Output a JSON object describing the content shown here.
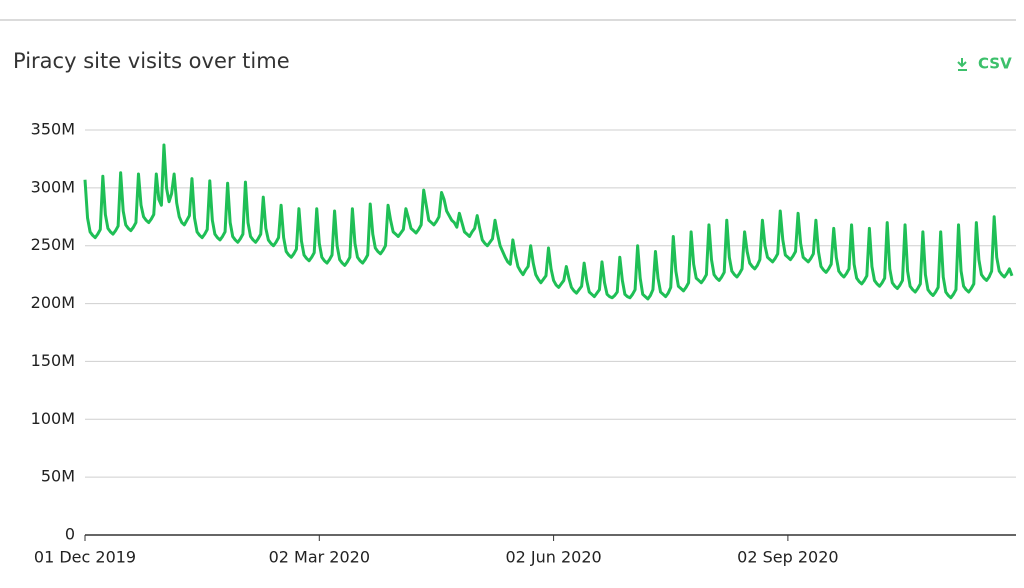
{
  "export_label": "CSV",
  "chart_data": {
    "type": "line",
    "title": "Piracy site visits over time",
    "color": "#1fbf56",
    "grid": true,
    "xlim": [
      "2019-12-01",
      "2020-11-29"
    ],
    "xticks": [
      {
        "value": "2019-12-01",
        "label": "01 Dec 2019"
      },
      {
        "value": "2020-03-02",
        "label": "02 Mar 2020"
      },
      {
        "value": "2020-06-02",
        "label": "02 Jun 2020"
      },
      {
        "value": "2020-09-02",
        "label": "02 Sep 2020"
      }
    ],
    "ylim": [
      0,
      350
    ],
    "yticks": [
      0,
      {
        "value": 50,
        "label": "50M"
      },
      {
        "value": 100,
        "label": "100M"
      },
      {
        "value": 150,
        "label": "150M"
      },
      {
        "value": 200,
        "label": "200M"
      },
      {
        "value": 250,
        "label": "250M"
      },
      {
        "value": 300,
        "label": "300M"
      },
      {
        "value": 350,
        "label": "350M"
      }
    ],
    "x": [
      "2019-12-01",
      "2019-12-02",
      "2019-12-03",
      "2019-12-04",
      "2019-12-05",
      "2019-12-06",
      "2019-12-07",
      "2019-12-08",
      "2019-12-09",
      "2019-12-10",
      "2019-12-11",
      "2019-12-12",
      "2019-12-13",
      "2019-12-14",
      "2019-12-15",
      "2019-12-16",
      "2019-12-17",
      "2019-12-18",
      "2019-12-19",
      "2019-12-20",
      "2019-12-21",
      "2019-12-22",
      "2019-12-23",
      "2019-12-24",
      "2019-12-25",
      "2019-12-26",
      "2019-12-27",
      "2019-12-28",
      "2019-12-29",
      "2019-12-30",
      "2019-12-31",
      "2020-01-01",
      "2020-01-02",
      "2020-01-03",
      "2020-01-04",
      "2020-01-05",
      "2020-01-06",
      "2020-01-07",
      "2020-01-08",
      "2020-01-09",
      "2020-01-10",
      "2020-01-11",
      "2020-01-12",
      "2020-01-13",
      "2020-01-14",
      "2020-01-15",
      "2020-01-16",
      "2020-01-17",
      "2020-01-18",
      "2020-01-19",
      "2020-01-20",
      "2020-01-21",
      "2020-01-22",
      "2020-01-23",
      "2020-01-24",
      "2020-01-25",
      "2020-01-26",
      "2020-01-27",
      "2020-01-28",
      "2020-01-29",
      "2020-01-30",
      "2020-01-31",
      "2020-02-01",
      "2020-02-02",
      "2020-02-03",
      "2020-02-04",
      "2020-02-05",
      "2020-02-06",
      "2020-02-07",
      "2020-02-08",
      "2020-02-09",
      "2020-02-10",
      "2020-02-11",
      "2020-02-12",
      "2020-02-13",
      "2020-02-14",
      "2020-02-15",
      "2020-02-16",
      "2020-02-17",
      "2020-02-18",
      "2020-02-19",
      "2020-02-20",
      "2020-02-21",
      "2020-02-22",
      "2020-02-23",
      "2020-02-24",
      "2020-02-25",
      "2020-02-26",
      "2020-02-27",
      "2020-02-28",
      "2020-02-29",
      "2020-03-01",
      "2020-03-02",
      "2020-03-03",
      "2020-03-04",
      "2020-03-05",
      "2020-03-06",
      "2020-03-07",
      "2020-03-08",
      "2020-03-09",
      "2020-03-10",
      "2020-03-11",
      "2020-03-12",
      "2020-03-13",
      "2020-03-14",
      "2020-03-15",
      "2020-03-16",
      "2020-03-17",
      "2020-03-18",
      "2020-03-19",
      "2020-03-20",
      "2020-03-21",
      "2020-03-22",
      "2020-03-23",
      "2020-03-24",
      "2020-03-25",
      "2020-03-26",
      "2020-03-27",
      "2020-03-28",
      "2020-03-29",
      "2020-03-30",
      "2020-03-31",
      "2020-04-01",
      "2020-04-02",
      "2020-04-03",
      "2020-04-04",
      "2020-04-05",
      "2020-04-06",
      "2020-04-07",
      "2020-04-08",
      "2020-04-09",
      "2020-04-10",
      "2020-04-11",
      "2020-04-12",
      "2020-04-13",
      "2020-04-14",
      "2020-04-15",
      "2020-04-16",
      "2020-04-17",
      "2020-04-18",
      "2020-04-19",
      "2020-04-20",
      "2020-04-21",
      "2020-04-22",
      "2020-04-23",
      "2020-04-24",
      "2020-04-25",
      "2020-04-26",
      "2020-04-27",
      "2020-04-28",
      "2020-04-29",
      "2020-04-30",
      "2020-05-01",
      "2020-05-02",
      "2020-05-03",
      "2020-05-04",
      "2020-05-05",
      "2020-05-06",
      "2020-05-07",
      "2020-05-08",
      "2020-05-09",
      "2020-05-10",
      "2020-05-11",
      "2020-05-12",
      "2020-05-13",
      "2020-05-14",
      "2020-05-15",
      "2020-05-16",
      "2020-05-17",
      "2020-05-18",
      "2020-05-19",
      "2020-05-20",
      "2020-05-21",
      "2020-05-22",
      "2020-05-23",
      "2020-05-24",
      "2020-05-25",
      "2020-05-26",
      "2020-05-27",
      "2020-05-28",
      "2020-05-29",
      "2020-05-30",
      "2020-05-31",
      "2020-06-01",
      "2020-06-02",
      "2020-06-03",
      "2020-06-04",
      "2020-06-05",
      "2020-06-06",
      "2020-06-07",
      "2020-06-08",
      "2020-06-09",
      "2020-06-10",
      "2020-06-11",
      "2020-06-12",
      "2020-06-13",
      "2020-06-14",
      "2020-06-15",
      "2020-06-16",
      "2020-06-17",
      "2020-06-18",
      "2020-06-19",
      "2020-06-20",
      "2020-06-21",
      "2020-06-22",
      "2020-06-23",
      "2020-06-24",
      "2020-06-25",
      "2020-06-26",
      "2020-06-27",
      "2020-06-28",
      "2020-06-29",
      "2020-06-30",
      "2020-07-01",
      "2020-07-02",
      "2020-07-03",
      "2020-07-04",
      "2020-07-05",
      "2020-07-06",
      "2020-07-07",
      "2020-07-08",
      "2020-07-09",
      "2020-07-10",
      "2020-07-11",
      "2020-07-12",
      "2020-07-13",
      "2020-07-14",
      "2020-07-15",
      "2020-07-16",
      "2020-07-17",
      "2020-07-18",
      "2020-07-19",
      "2020-07-20",
      "2020-07-21",
      "2020-07-22",
      "2020-07-23",
      "2020-07-24",
      "2020-07-25",
      "2020-07-26",
      "2020-07-27",
      "2020-07-28",
      "2020-07-29",
      "2020-07-30",
      "2020-07-31",
      "2020-08-01",
      "2020-08-02",
      "2020-08-03",
      "2020-08-04",
      "2020-08-05",
      "2020-08-06",
      "2020-08-07",
      "2020-08-08",
      "2020-08-09",
      "2020-08-10",
      "2020-08-11",
      "2020-08-12",
      "2020-08-13",
      "2020-08-14",
      "2020-08-15",
      "2020-08-16",
      "2020-08-17",
      "2020-08-18",
      "2020-08-19",
      "2020-08-20",
      "2020-08-21",
      "2020-08-22",
      "2020-08-23",
      "2020-08-24",
      "2020-08-25",
      "2020-08-26",
      "2020-08-27",
      "2020-08-28",
      "2020-08-29",
      "2020-08-30",
      "2020-08-31",
      "2020-09-01",
      "2020-09-02",
      "2020-09-03",
      "2020-09-04",
      "2020-09-05",
      "2020-09-06",
      "2020-09-07",
      "2020-09-08",
      "2020-09-09",
      "2020-09-10",
      "2020-09-11",
      "2020-09-12",
      "2020-09-13",
      "2020-09-14",
      "2020-09-15",
      "2020-09-16",
      "2020-09-17",
      "2020-09-18",
      "2020-09-19",
      "2020-09-20",
      "2020-09-21",
      "2020-09-22",
      "2020-09-23",
      "2020-09-24",
      "2020-09-25",
      "2020-09-26",
      "2020-09-27",
      "2020-09-28",
      "2020-09-29",
      "2020-09-30",
      "2020-10-01",
      "2020-10-02",
      "2020-10-03",
      "2020-10-04",
      "2020-10-05",
      "2020-10-06",
      "2020-10-07",
      "2020-10-08",
      "2020-10-09",
      "2020-10-10",
      "2020-10-11",
      "2020-10-12",
      "2020-10-13",
      "2020-10-14",
      "2020-10-15",
      "2020-10-16",
      "2020-10-17",
      "2020-10-18",
      "2020-10-19",
      "2020-10-20",
      "2020-10-21",
      "2020-10-22",
      "2020-10-23",
      "2020-10-24",
      "2020-10-25",
      "2020-10-26",
      "2020-10-27",
      "2020-10-28",
      "2020-10-29",
      "2020-10-30",
      "2020-10-31",
      "2020-11-01",
      "2020-11-02",
      "2020-11-03",
      "2020-11-04",
      "2020-11-05",
      "2020-11-06",
      "2020-11-07",
      "2020-11-08",
      "2020-11-09",
      "2020-11-10",
      "2020-11-11",
      "2020-11-12",
      "2020-11-13",
      "2020-11-14",
      "2020-11-15",
      "2020-11-16",
      "2020-11-17",
      "2020-11-18",
      "2020-11-19",
      "2020-11-20",
      "2020-11-21",
      "2020-11-22",
      "2020-11-23",
      "2020-11-24",
      "2020-11-25",
      "2020-11-26",
      "2020-11-27",
      "2020-11-28",
      "2020-11-29"
    ],
    "values": [
      307,
      274,
      262,
      259,
      257,
      260,
      264,
      310,
      277,
      265,
      262,
      260,
      263,
      267,
      313,
      280,
      268,
      265,
      263,
      266,
      270,
      312,
      285,
      275,
      272,
      270,
      273,
      277,
      312,
      290,
      285,
      337,
      300,
      288,
      295,
      312,
      287,
      275,
      270,
      268,
      272,
      276,
      308,
      274,
      262,
      259,
      257,
      260,
      264,
      306,
      272,
      260,
      257,
      255,
      258,
      262,
      304,
      270,
      258,
      255,
      253,
      256,
      260,
      305,
      270,
      258,
      255,
      253,
      256,
      260,
      292,
      265,
      255,
      252,
      250,
      253,
      257,
      285,
      257,
      245,
      242,
      240,
      243,
      247,
      282,
      254,
      242,
      239,
      237,
      240,
      244,
      282,
      252,
      240,
      237,
      235,
      238,
      242,
      280,
      250,
      238,
      235,
      233,
      236,
      240,
      282,
      252,
      240,
      237,
      235,
      238,
      242,
      286,
      260,
      248,
      245,
      243,
      246,
      250,
      285,
      272,
      262,
      260,
      258,
      261,
      264,
      282,
      274,
      265,
      263,
      261,
      264,
      268,
      298,
      285,
      272,
      270,
      268,
      271,
      275,
      296,
      290,
      280,
      276,
      272,
      270,
      266,
      278,
      270,
      262,
      260,
      258,
      262,
      265,
      276,
      265,
      255,
      252,
      250,
      253,
      256,
      272,
      260,
      250,
      245,
      240,
      236,
      234,
      255,
      242,
      232,
      228,
      225,
      229,
      232,
      250,
      235,
      225,
      221,
      218,
      221,
      224,
      248,
      230,
      220,
      216,
      214,
      217,
      220,
      232,
      222,
      214,
      211,
      209,
      212,
      215,
      235,
      220,
      210,
      208,
      206,
      209,
      212,
      236,
      218,
      208,
      206,
      205,
      207,
      210,
      240,
      220,
      208,
      206,
      205,
      208,
      212,
      250,
      222,
      208,
      206,
      204,
      207,
      212,
      245,
      222,
      210,
      208,
      206,
      209,
      214,
      258,
      228,
      215,
      213,
      211,
      214,
      218,
      262,
      234,
      222,
      220,
      218,
      221,
      225,
      268,
      238,
      225,
      222,
      220,
      223,
      227,
      272,
      240,
      228,
      225,
      223,
      226,
      230,
      262,
      245,
      235,
      232,
      230,
      233,
      238,
      272,
      250,
      240,
      238,
      236,
      239,
      243,
      280,
      255,
      242,
      240,
      238,
      241,
      245,
      278,
      252,
      240,
      238,
      236,
      239,
      243,
      272,
      245,
      232,
      229,
      227,
      230,
      234,
      265,
      240,
      228,
      225,
      223,
      226,
      230,
      268,
      234,
      222,
      219,
      217,
      220,
      224,
      265,
      232,
      220,
      217,
      215,
      218,
      222,
      270,
      230,
      218,
      215,
      213,
      216,
      220,
      268,
      228,
      215,
      212,
      210,
      213,
      217,
      262,
      225,
      212,
      209,
      207,
      210,
      214,
      262,
      223,
      210,
      207,
      205,
      208,
      212,
      268,
      228,
      215,
      212,
      210,
      213,
      217,
      270,
      238,
      225,
      222,
      220,
      223,
      228,
      275,
      240,
      228,
      225,
      223,
      226,
      230,
      224
    ]
  }
}
